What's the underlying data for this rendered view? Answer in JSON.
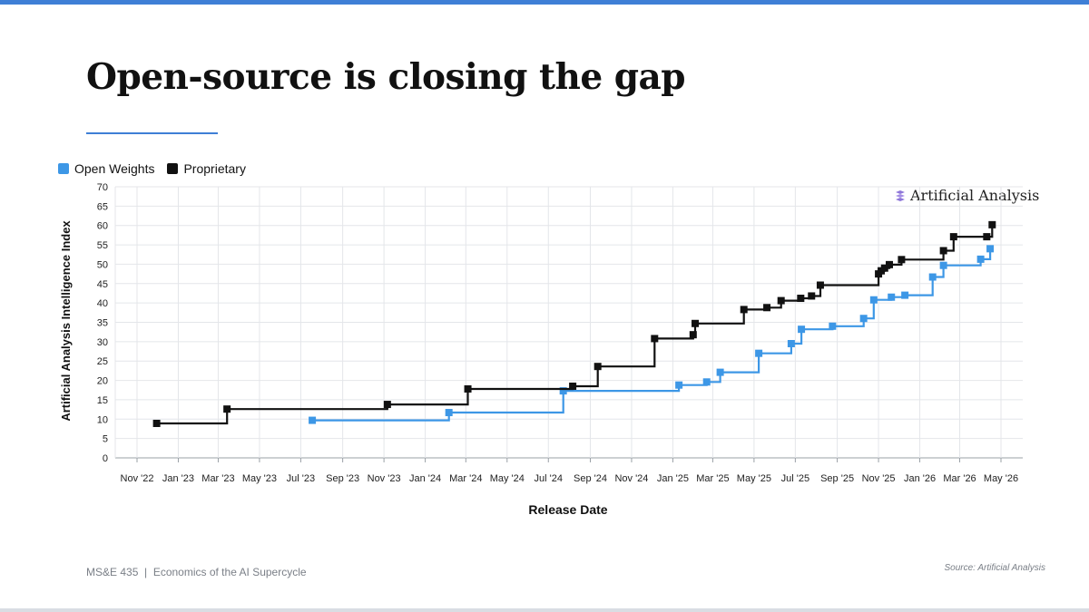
{
  "slide": {
    "title": "Open-source is closing the gap",
    "footer_left": "MS&E 435  |  Economics of the AI Supercycle",
    "footer_right": "Source: Artificial Analysis",
    "brand_text": "Artificial Analysis",
    "accent_color": "#3f7fd6"
  },
  "chart_data": {
    "type": "line",
    "xlabel": "Release Date",
    "ylabel": "Artificial Analysis Intelligence Index",
    "ylim": [
      0,
      70
    ],
    "yticks": [
      0,
      5,
      10,
      15,
      20,
      25,
      30,
      35,
      40,
      45,
      50,
      55,
      60,
      65,
      70
    ],
    "xlim": [
      "2022-11-01",
      "2026-05-01"
    ],
    "xticks": [
      {
        "date": "2022-11-01",
        "label": "Nov '22"
      },
      {
        "date": "2023-01-01",
        "label": "Jan '23"
      },
      {
        "date": "2023-03-01",
        "label": "Mar '23"
      },
      {
        "date": "2023-05-01",
        "label": "May '23"
      },
      {
        "date": "2023-07-01",
        "label": "Jul '23"
      },
      {
        "date": "2023-09-01",
        "label": "Sep '23"
      },
      {
        "date": "2023-11-01",
        "label": "Nov '23"
      },
      {
        "date": "2024-01-01",
        "label": "Jan '24"
      },
      {
        "date": "2024-03-01",
        "label": "Mar '24"
      },
      {
        "date": "2024-05-01",
        "label": "May '24"
      },
      {
        "date": "2024-07-01",
        "label": "Jul '24"
      },
      {
        "date": "2024-09-01",
        "label": "Sep '24"
      },
      {
        "date": "2024-11-01",
        "label": "Nov '24"
      },
      {
        "date": "2025-01-01",
        "label": "Jan '25"
      },
      {
        "date": "2025-03-01",
        "label": "Mar '25"
      },
      {
        "date": "2025-05-01",
        "label": "May '25"
      },
      {
        "date": "2025-07-01",
        "label": "Jul '25"
      },
      {
        "date": "2025-09-01",
        "label": "Sep '25"
      },
      {
        "date": "2025-11-01",
        "label": "Nov '25"
      },
      {
        "date": "2026-01-01",
        "label": "Jan '26"
      },
      {
        "date": "2026-03-01",
        "label": "Mar '26"
      },
      {
        "date": "2026-05-01",
        "label": "May '26"
      }
    ],
    "legend": "top-left",
    "grid": true,
    "line_style": "step",
    "series": [
      {
        "name": "Open Weights",
        "color": "#3d97e6",
        "points": [
          {
            "x": "2023-07-18",
            "y": 9.7
          },
          {
            "x": "2024-02-05",
            "y": 11.7
          },
          {
            "x": "2024-07-23",
            "y": 17.3
          },
          {
            "x": "2025-01-10",
            "y": 18.8
          },
          {
            "x": "2025-02-20",
            "y": 19.6
          },
          {
            "x": "2025-03-12",
            "y": 22.1
          },
          {
            "x": "2025-05-08",
            "y": 27.0
          },
          {
            "x": "2025-06-25",
            "y": 29.5
          },
          {
            "x": "2025-07-10",
            "y": 33.2
          },
          {
            "x": "2025-08-25",
            "y": 34.0
          },
          {
            "x": "2025-10-10",
            "y": 36.0
          },
          {
            "x": "2025-10-25",
            "y": 40.8
          },
          {
            "x": "2025-11-20",
            "y": 41.5
          },
          {
            "x": "2025-12-10",
            "y": 42.0
          },
          {
            "x": "2026-01-20",
            "y": 46.7
          },
          {
            "x": "2026-02-05",
            "y": 49.7
          },
          {
            "x": "2026-04-01",
            "y": 51.3
          },
          {
            "x": "2026-04-15",
            "y": 54.0
          }
        ]
      },
      {
        "name": "Proprietary",
        "color": "#111111",
        "points": [
          {
            "x": "2022-11-30",
            "y": 8.9
          },
          {
            "x": "2023-03-14",
            "y": 12.6
          },
          {
            "x": "2023-11-06",
            "y": 13.8
          },
          {
            "x": "2024-03-04",
            "y": 17.8
          },
          {
            "x": "2024-08-06",
            "y": 18.5
          },
          {
            "x": "2024-09-12",
            "y": 23.6
          },
          {
            "x": "2024-12-05",
            "y": 30.8
          },
          {
            "x": "2025-01-31",
            "y": 31.8
          },
          {
            "x": "2025-02-03",
            "y": 34.7
          },
          {
            "x": "2025-04-16",
            "y": 38.3
          },
          {
            "x": "2025-05-20",
            "y": 38.8
          },
          {
            "x": "2025-06-10",
            "y": 40.6
          },
          {
            "x": "2025-07-09",
            "y": 41.2
          },
          {
            "x": "2025-07-25",
            "y": 41.8
          },
          {
            "x": "2025-08-07",
            "y": 44.6
          },
          {
            "x": "2025-11-01",
            "y": 47.5
          },
          {
            "x": "2025-11-05",
            "y": 48.3
          },
          {
            "x": "2025-11-10",
            "y": 49.0
          },
          {
            "x": "2025-11-17",
            "y": 49.9
          },
          {
            "x": "2025-12-05",
            "y": 51.2
          },
          {
            "x": "2026-02-05",
            "y": 53.5
          },
          {
            "x": "2026-02-20",
            "y": 57.1
          },
          {
            "x": "2026-04-10",
            "y": 57.1
          },
          {
            "x": "2026-04-18",
            "y": 60.2
          }
        ]
      }
    ]
  }
}
